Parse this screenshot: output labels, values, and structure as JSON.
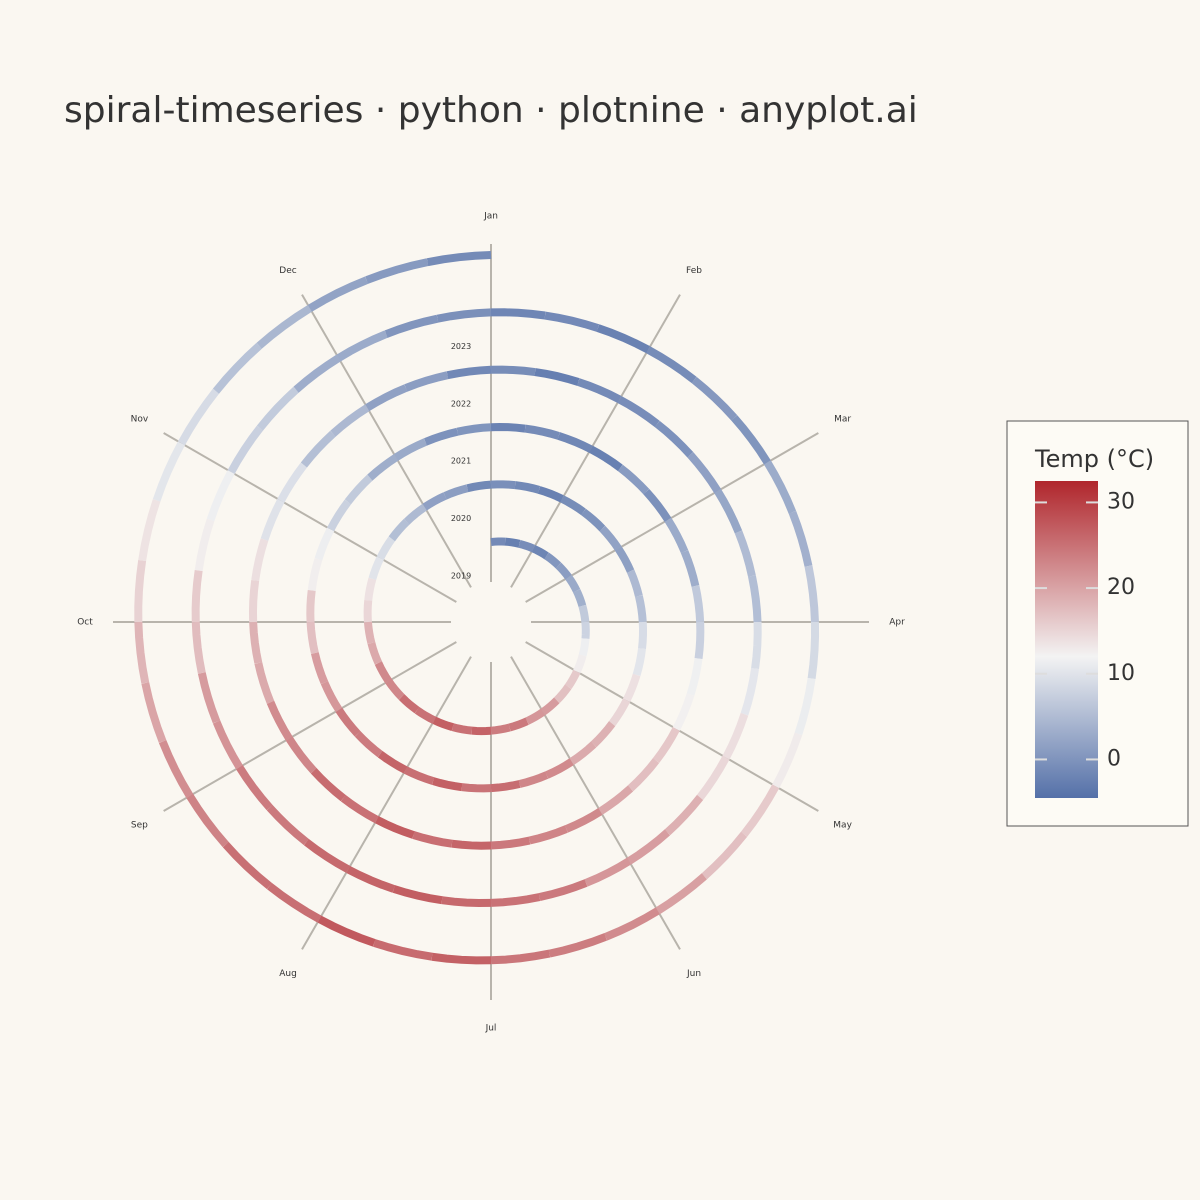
{
  "chart_data": {
    "type": "spiral",
    "title": "spiral-timeseries · python · plotnine · anyplot.ai",
    "legend_title": "Temp (°C)",
    "months": [
      "Jan",
      "Feb",
      "Mar",
      "Apr",
      "May",
      "Jun",
      "Jul",
      "Aug",
      "Sep",
      "Oct",
      "Nov",
      "Dec"
    ],
    "years": [
      "2019",
      "2020",
      "2021",
      "2022",
      "2023"
    ],
    "values": [
      [
        -1.2,
        -2.5,
        -0.8,
        -1.9,
        0.3,
        1.2,
        2.8,
        3.5,
        6.8,
        8.0,
        11.5,
        12.6,
        16.2,
        17.1,
        20.8,
        21.3,
        24.2,
        23.9,
        26.4,
        25.1,
        26.8,
        24.9,
        25.3,
        22.8,
        22.6,
        19.4,
        18.5,
        14.9,
        13.8,
        10.1,
        9.2,
        5.4,
        4.8,
        1.6,
        1.3,
        -1.4
      ],
      [
        -0.6,
        -1.4,
        -2.3,
        -0.9,
        -0.1,
        1.8,
        1.5,
        4.7,
        5.6,
        9.1,
        10.2,
        13.9,
        15.0,
        18.6,
        19.3,
        22.5,
        22.9,
        25.4,
        24.8,
        26.7,
        25.2,
        26.3,
        24.0,
        24.1,
        21.2,
        20.7,
        17.2,
        16.3,
        12.5,
        11.4,
        7.7,
        6.8,
        3.3,
        2.8,
        -0.2,
        0.1
      ],
      [
        -2.1,
        -1.1,
        -1.6,
        -2.4,
        0.9,
        -0.3,
        2.9,
        3.2,
        6.7,
        7.6,
        11.6,
        12.3,
        16.4,
        17.3,
        19.6,
        22.6,
        23.1,
        24.3,
        26.2,
        25.3,
        27.0,
        25.0,
        25.5,
        22.9,
        22.4,
        19.3,
        18.6,
        15.1,
        14.0,
        9.9,
        9.5,
        5.5,
        4.6,
        1.7,
        1.2,
        -1.5
      ],
      [
        -0.9,
        -2.6,
        -1.2,
        -0.8,
        -0.2,
        1.6,
        2.4,
        4.9,
        5.3,
        9.2,
        10.4,
        14.1,
        14.8,
        18.7,
        20.6,
        21.3,
        24.2,
        24.9,
        25.8,
        26.9,
        26.3,
        25.7,
        24.2,
        24.0,
        21.6,
        20.8,
        17.5,
        16.0,
        12.6,
        11.5,
        7.6,
        6.9,
        3.2,
        2.9,
        0.2,
        -0.5
      ],
      [
        -1.7,
        -1.3,
        -2.2,
        -1.0,
        0.6,
        0.1,
        3.0,
        3.6,
        6.5,
        8.8,
        11.2,
        12.8,
        16.1,
        17.2,
        20.3,
        22.4,
        23.8,
        24.5,
        26.6,
        25.6,
        27.4,
        25.2,
        25.1,
        23.2,
        22.1,
        19.8,
        18.2,
        15.3,
        13.6,
        10.3,
        9.0,
        5.8,
        4.4,
        1.9,
        0.8,
        -1.1
      ]
    ],
    "colorlim": [
      -4.5,
      32.5
    ],
    "colorticks": [
      0,
      10,
      20,
      30
    ],
    "colorscale": [
      [
        -4.5,
        "#5470a8"
      ],
      [
        12,
        "#f3f3f3"
      ],
      [
        32.5,
        "#b0262c"
      ]
    ]
  }
}
